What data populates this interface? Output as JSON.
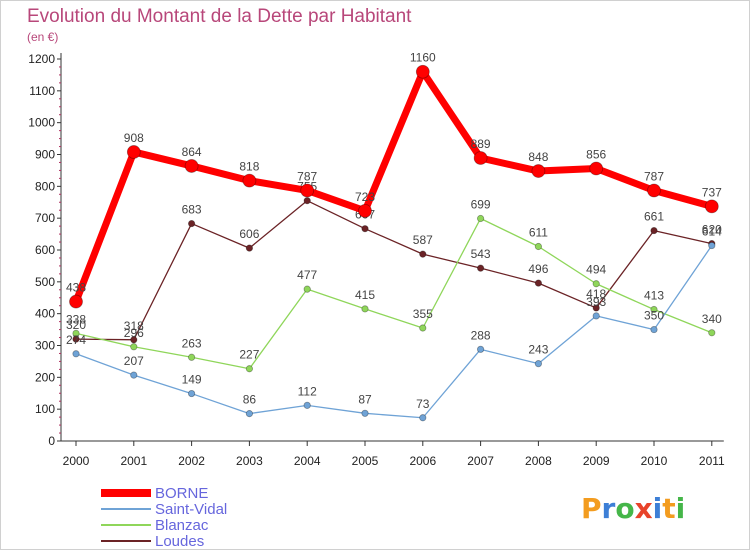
{
  "title": "Evolution du Montant de la Dette par Habitant",
  "unit": "(en €)",
  "logo": {
    "text": "Proxiti",
    "letters": [
      {
        "ch": "P",
        "color": "#f39c1f"
      },
      {
        "ch": "r",
        "color": "#3d7fd6"
      },
      {
        "ch": "o",
        "color": "#45b649"
      },
      {
        "ch": "x",
        "color": "#e8432a"
      },
      {
        "ch": "i",
        "color": "#3d7fd6"
      },
      {
        "ch": "t",
        "color": "#f39c1f"
      },
      {
        "ch": "i",
        "color": "#45b649"
      }
    ]
  },
  "chart_data": {
    "type": "line",
    "title": "Evolution du Montant de la Dette par Habitant",
    "ylabel": "(en €)",
    "x": [
      "2000",
      "2001",
      "2002",
      "2003",
      "2004",
      "2005",
      "2006",
      "2007",
      "2008",
      "2009",
      "2010",
      "2011"
    ],
    "ylim": [
      0,
      1200
    ],
    "yticks": [
      0,
      100,
      200,
      300,
      400,
      500,
      600,
      700,
      800,
      900,
      1000,
      1100,
      1200
    ],
    "grid": false,
    "legend": "bottom-left",
    "series": [
      {
        "name": "Loudes",
        "color": "#6b2326",
        "width": 1.3,
        "marker": 3.2,
        "values": [
          320,
          318,
          683,
          606,
          755,
          667,
          587,
          543,
          496,
          418,
          661,
          620
        ],
        "labels": [
          "320",
          "318",
          "683",
          "606",
          "755",
          "667",
          "587",
          "543",
          "496",
          "418",
          "661",
          "620"
        ]
      },
      {
        "name": "Blanzac",
        "color": "#8fd65a",
        "width": 1.3,
        "marker": 3.2,
        "values": [
          338,
          296,
          263,
          227,
          477,
          415,
          355,
          699,
          611,
          494,
          413,
          340
        ],
        "labels": [
          "338",
          "296",
          "263",
          "227",
          "477",
          "415",
          "355",
          "699",
          "611",
          "494",
          "413",
          "340"
        ]
      },
      {
        "name": "Saint-Vidal",
        "color": "#6fa3d6",
        "width": 1.3,
        "marker": 3.2,
        "values": [
          274,
          207,
          149,
          86,
          112,
          87,
          73,
          288,
          243,
          393,
          350,
          614
        ],
        "labels": [
          "274",
          "207",
          "149",
          "86",
          "112",
          "87",
          "73",
          "288",
          "243",
          "393",
          "350",
          "614"
        ]
      },
      {
        "name": "BORNE",
        "color": "#ff0000",
        "width": 7,
        "marker": 6.5,
        "values": [
          438,
          908,
          864,
          818,
          787,
          723,
          1160,
          889,
          848,
          856,
          787,
          737
        ],
        "labels": [
          "438",
          "908",
          "864",
          "818",
          "787",
          "723",
          "1160",
          "889",
          "848",
          "856",
          "787",
          "737"
        ]
      }
    ],
    "legend_order": [
      "BORNE",
      "Saint-Vidal",
      "Blanzac",
      "Loudes"
    ]
  }
}
